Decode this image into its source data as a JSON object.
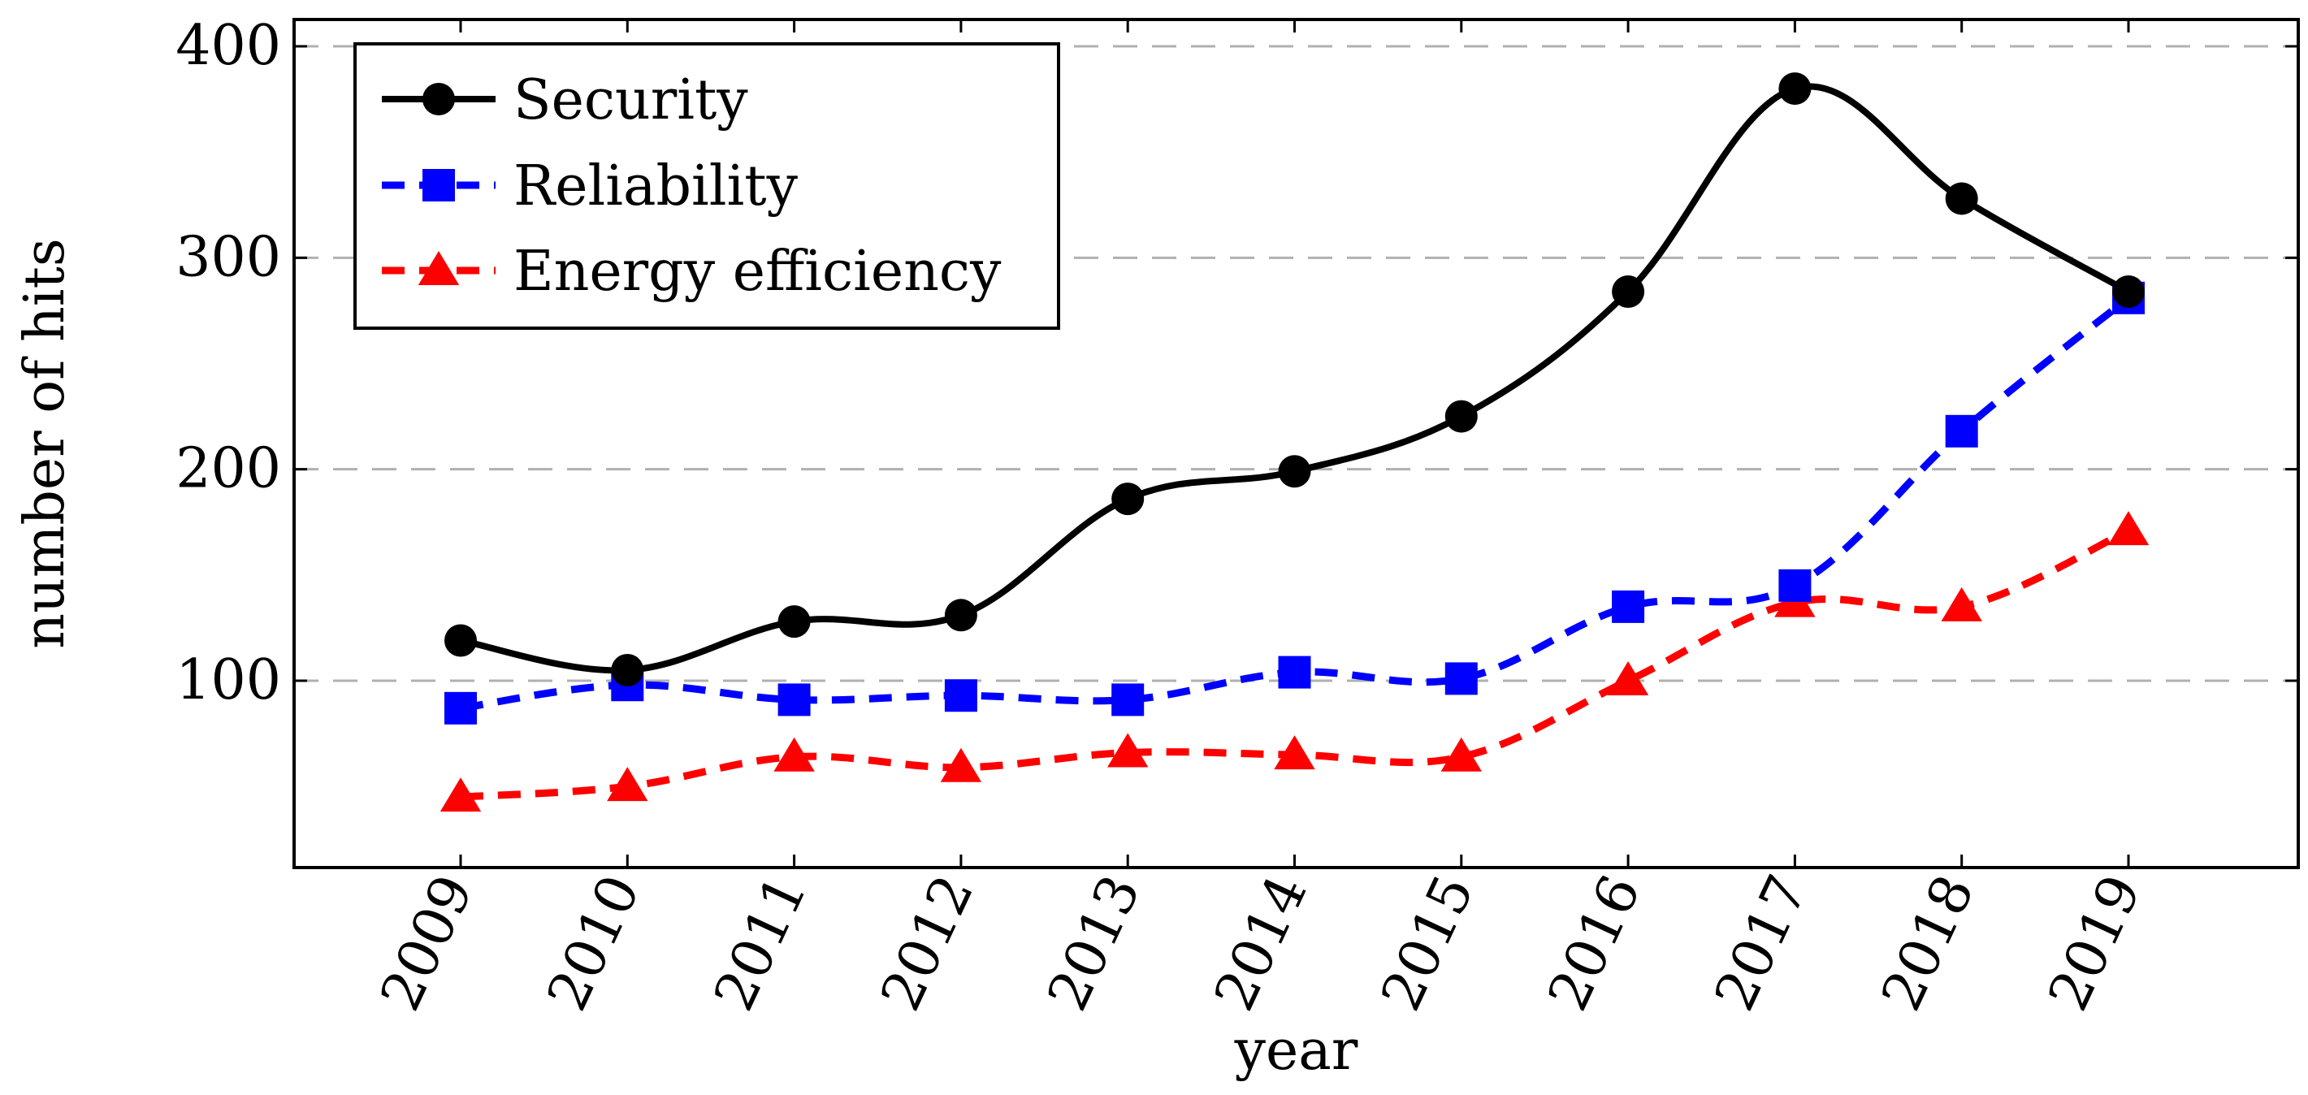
{
  "chart_data": {
    "type": "line",
    "title": "",
    "xlabel": "year",
    "ylabel": "number of hits",
    "categories": [
      "2009",
      "2010",
      "2011",
      "2012",
      "2013",
      "2014",
      "2015",
      "2016",
      "2017",
      "2018",
      "2019"
    ],
    "yticks": [
      100,
      200,
      300,
      400
    ],
    "ytick_labels": [
      "100",
      "200",
      "300",
      "400"
    ],
    "ylim": [
      0,
      413
    ],
    "grid": "horizontal-dashed",
    "legend_position": "top-left",
    "series": [
      {
        "name": "Security",
        "color": "#000000",
        "marker": "circle",
        "line_style": "solid",
        "smooth": true,
        "values": [
          119,
          105,
          128,
          131,
          186,
          199,
          225,
          284,
          380,
          328,
          284
        ]
      },
      {
        "name": "Reliability",
        "color": "#0000ff",
        "marker": "square",
        "line_style": "dashed",
        "smooth": true,
        "values": [
          87,
          98,
          91,
          93,
          91,
          104,
          101,
          135,
          145,
          218,
          281
        ]
      },
      {
        "name": "Energy efficiency",
        "color": "#ff0000",
        "marker": "triangle",
        "line_style": "dashed",
        "smooth": true,
        "values": [
          45,
          50,
          64,
          59,
          66,
          65,
          64,
          100,
          137,
          135,
          171
        ]
      }
    ]
  }
}
